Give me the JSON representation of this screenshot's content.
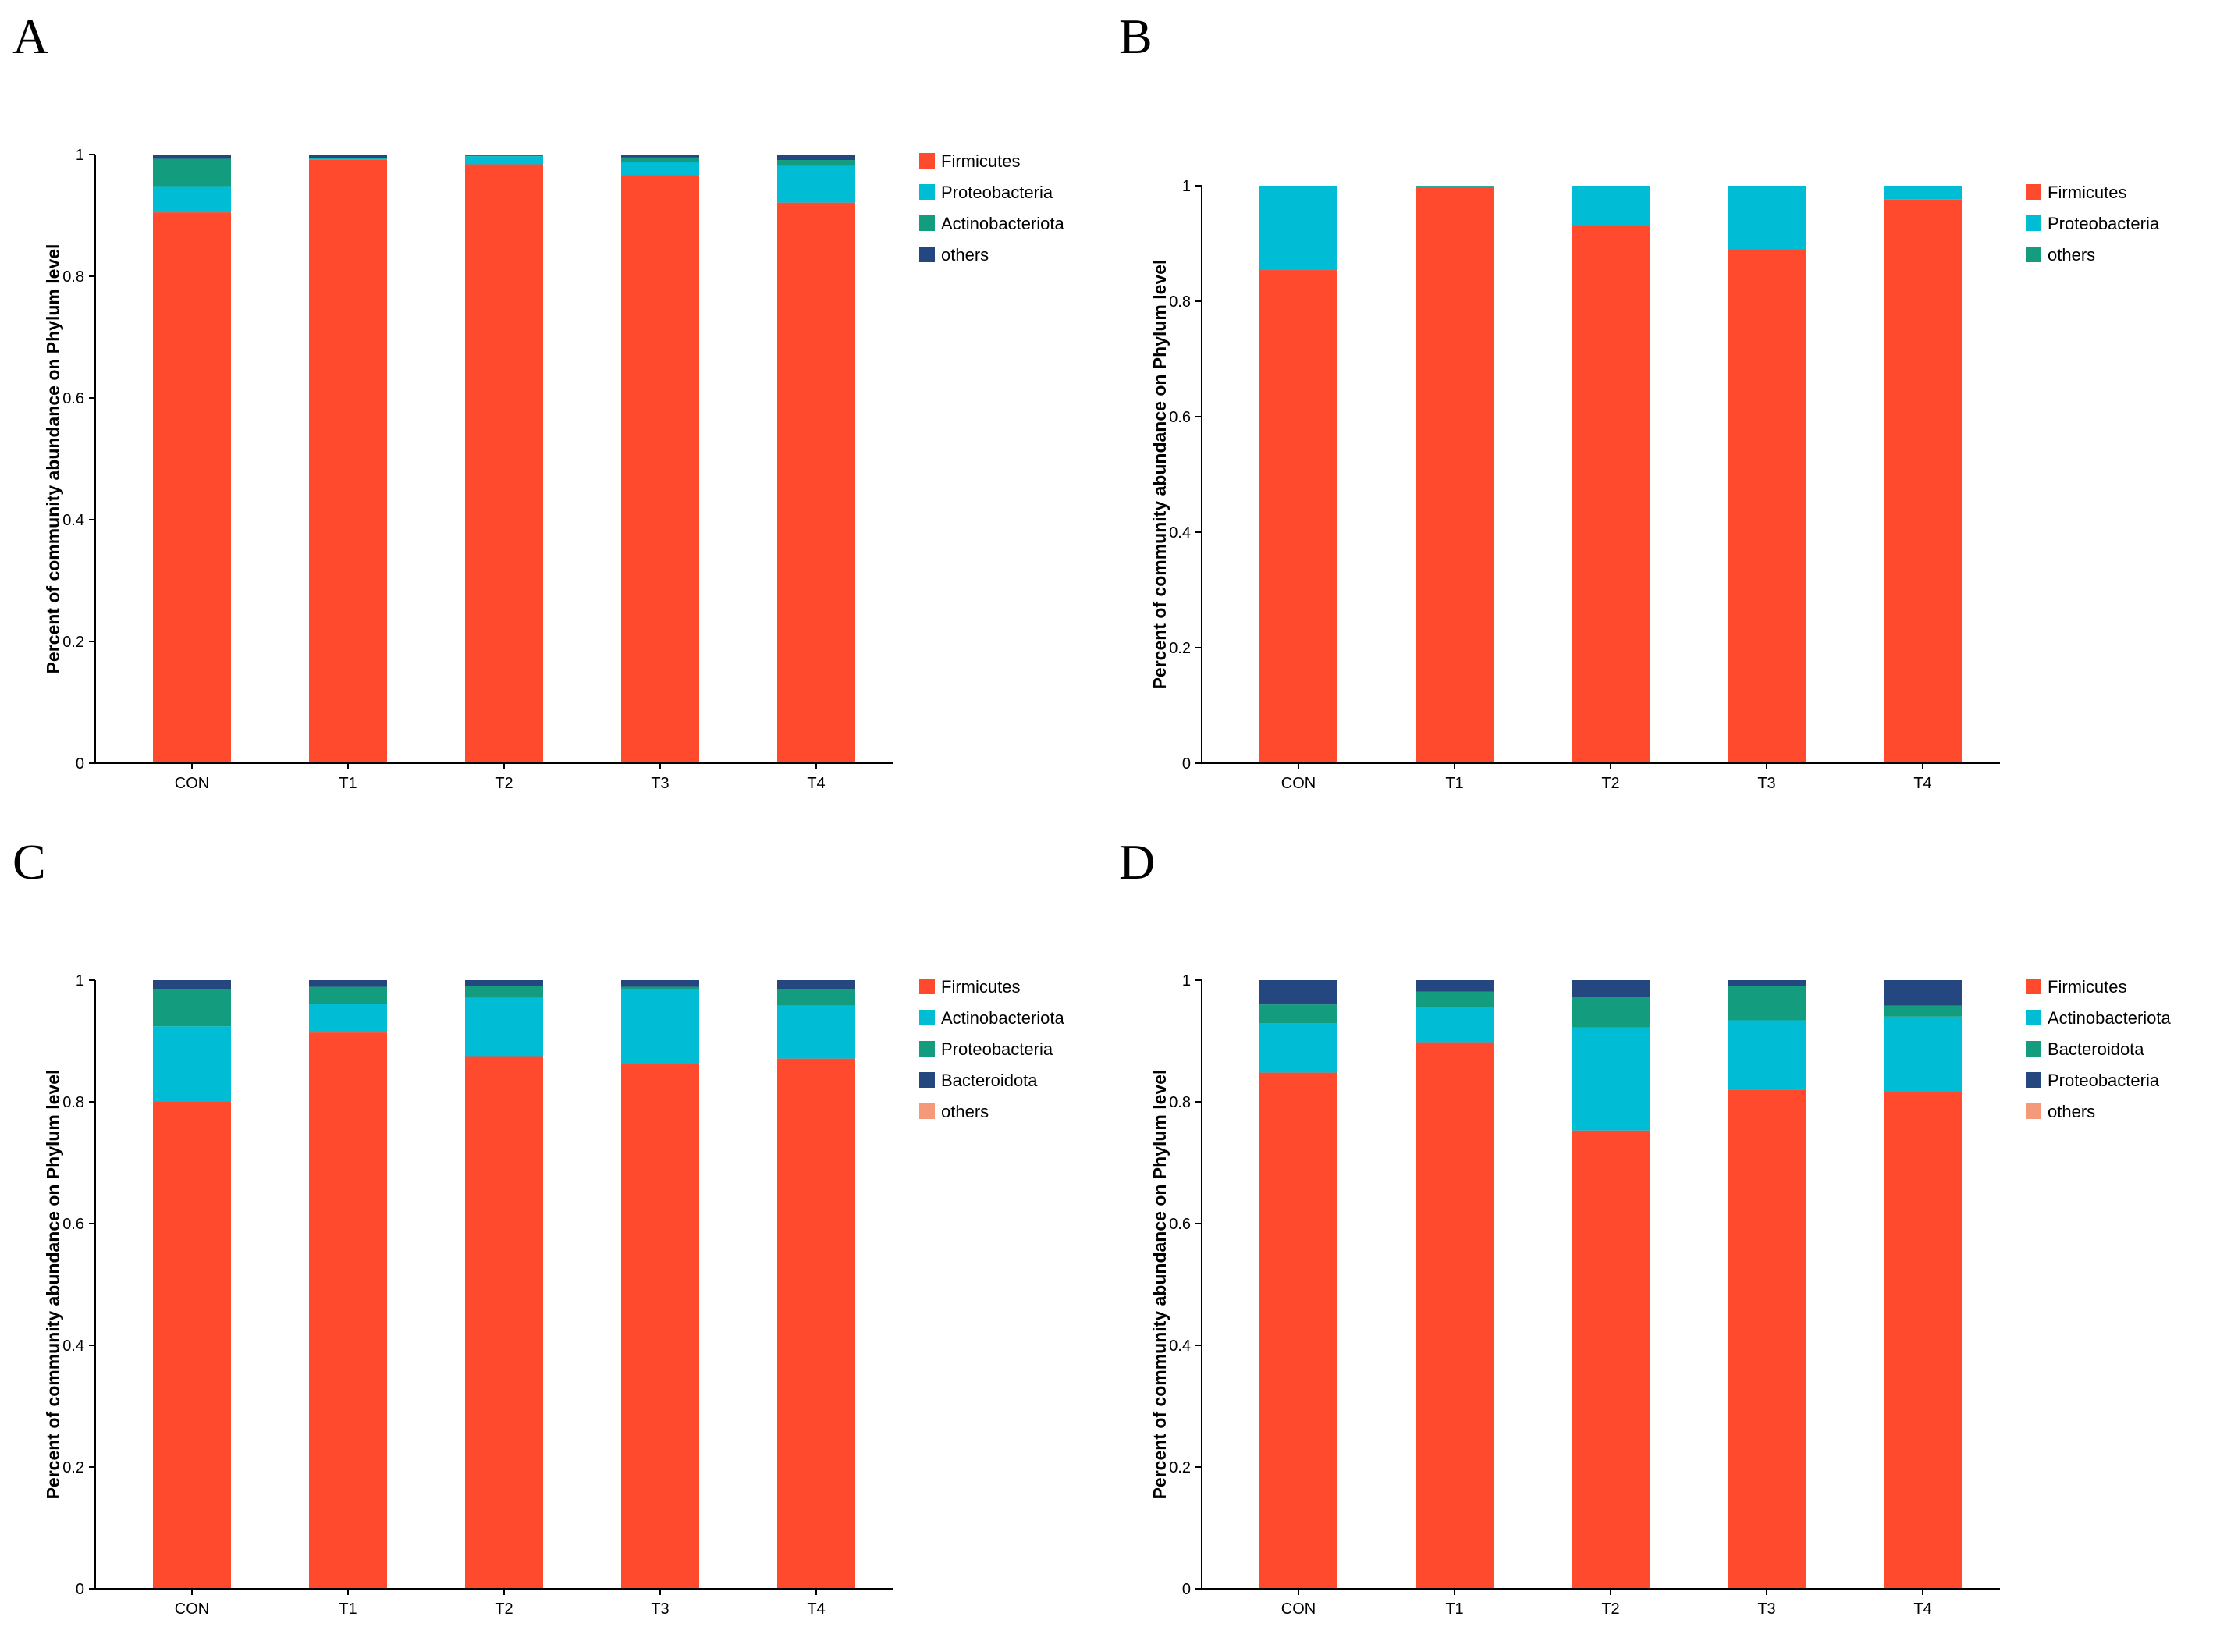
{
  "chart_data": [
    {
      "panel": "A",
      "type": "bar",
      "stacked": true,
      "ylabel": "Percent of community abundance on Phylum level",
      "ylim": [
        0,
        1
      ],
      "yticks": [
        "0",
        "0.2",
        "0.4",
        "0.6",
        "0.8",
        "1"
      ],
      "categories": [
        "CON",
        "T1",
        "T2",
        "T3",
        "T4"
      ],
      "series": [
        {
          "name": "Firmicutes",
          "color": "#FF4A2E",
          "values": [
            0.905,
            0.992,
            0.984,
            0.966,
            0.921
          ]
        },
        {
          "name": "Proteobacteria",
          "color": "#00BCD4",
          "values": [
            0.043,
            0.001,
            0.013,
            0.022,
            0.06
          ]
        },
        {
          "name": "Actinobacteriota",
          "color": "#139C7E",
          "values": [
            0.045,
            0.001,
            0.001,
            0.007,
            0.01
          ]
        },
        {
          "name": "others",
          "color": "#24477F",
          "values": [
            0.007,
            0.006,
            0.002,
            0.005,
            0.009
          ]
        }
      ],
      "legend_position": "right"
    },
    {
      "panel": "B",
      "type": "bar",
      "stacked": true,
      "ylabel": "Percent of community abundance on Phylum level",
      "ylim": [
        0,
        1
      ],
      "yticks": [
        "0",
        "0.2",
        "0.4",
        "0.6",
        "0.8",
        "1"
      ],
      "categories": [
        "CON",
        "T1",
        "T2",
        "T3",
        "T4"
      ],
      "series": [
        {
          "name": "Firmicutes",
          "color": "#FF4A2E",
          "values": [
            0.854,
            0.998,
            0.93,
            0.888,
            0.976
          ]
        },
        {
          "name": "Proteobacteria",
          "color": "#00BCD4",
          "values": [
            0.146,
            0.001,
            0.07,
            0.112,
            0.024
          ]
        },
        {
          "name": "others",
          "color": "#139C7E",
          "values": [
            0.0,
            0.001,
            0.0,
            0.0,
            0.0
          ]
        }
      ],
      "legend_position": "right"
    },
    {
      "panel": "C",
      "type": "bar",
      "stacked": true,
      "ylabel": "Percent of community abundance on Phylum level",
      "ylim": [
        0,
        1
      ],
      "yticks": [
        "0",
        "0.2",
        "0.4",
        "0.6",
        "0.8",
        "1"
      ],
      "categories": [
        "CON",
        "T1",
        "T2",
        "T3",
        "T4"
      ],
      "series": [
        {
          "name": "Firmicutes",
          "color": "#FF4A2E",
          "values": [
            0.8,
            0.914,
            0.875,
            0.864,
            0.871
          ]
        },
        {
          "name": "Actinobacteriota",
          "color": "#00BCD4",
          "values": [
            0.124,
            0.047,
            0.096,
            0.121,
            0.087
          ]
        },
        {
          "name": "Proteobacteria",
          "color": "#139C7E",
          "values": [
            0.061,
            0.028,
            0.019,
            0.004,
            0.027
          ]
        },
        {
          "name": "Bacteroidota",
          "color": "#24477F",
          "values": [
            0.015,
            0.011,
            0.01,
            0.011,
            0.015
          ]
        },
        {
          "name": "others",
          "color": "#F4997A",
          "values": [
            0.0,
            0.0,
            0.0,
            0.0,
            0.0
          ]
        }
      ],
      "legend_position": "right"
    },
    {
      "panel": "D",
      "type": "bar",
      "stacked": true,
      "ylabel": "Percent of community abundance on Phylum level",
      "ylim": [
        0,
        1
      ],
      "yticks": [
        "0",
        "0.2",
        "0.4",
        "0.6",
        "0.8",
        "1"
      ],
      "categories": [
        "CON",
        "T1",
        "T2",
        "T3",
        "T4"
      ],
      "series": [
        {
          "name": "Firmicutes",
          "color": "#FF4A2E",
          "values": [
            0.848,
            0.898,
            0.753,
            0.82,
            0.816
          ]
        },
        {
          "name": "Actinobacteriota",
          "color": "#00BCD4",
          "values": [
            0.081,
            0.058,
            0.169,
            0.114,
            0.124
          ]
        },
        {
          "name": "Bacteroidota",
          "color": "#139C7E",
          "values": [
            0.031,
            0.025,
            0.05,
            0.056,
            0.018
          ]
        },
        {
          "name": "Proteobacteria",
          "color": "#24477F",
          "values": [
            0.04,
            0.019,
            0.028,
            0.01,
            0.042
          ]
        },
        {
          "name": "others",
          "color": "#F4997A",
          "values": [
            0.0,
            0.0,
            0.0,
            0.0,
            0.0
          ]
        }
      ],
      "legend_position": "right"
    }
  ]
}
